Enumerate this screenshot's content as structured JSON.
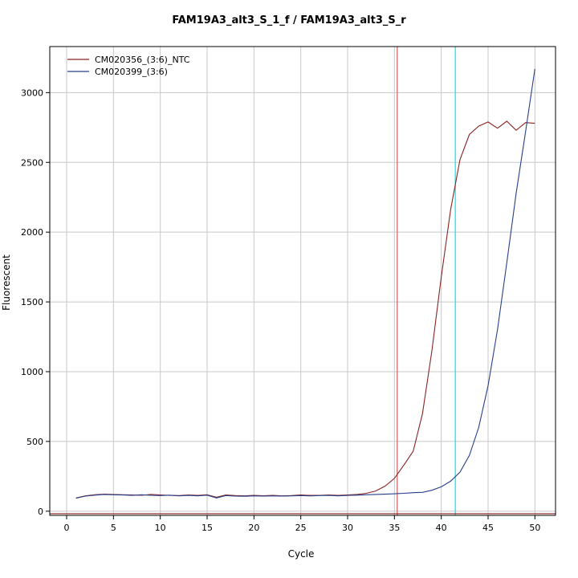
{
  "header": {
    "title": "FAM19A3_alt3_S_1_f / FAM19A3_alt3_S_r"
  },
  "chart_data": {
    "type": "line",
    "title": "FAM19A3_alt3_S_1_f / FAM19A3_alt3_S_r",
    "xlabel": "Cycle",
    "ylabel": "Fluorescent",
    "xlim": [
      -1.8,
      52.2
    ],
    "ylim": [
      -30,
      3330
    ],
    "xticks": [
      0,
      5,
      10,
      15,
      20,
      25,
      30,
      35,
      40,
      45,
      50
    ],
    "yticks": [
      0,
      500,
      1000,
      1500,
      2000,
      2500,
      3000
    ],
    "grid": true,
    "grid_color": "#c8c8c8",
    "axis_color": "#000000",
    "legend_position": "top-left",
    "x": [
      1,
      2,
      3,
      4,
      5,
      6,
      7,
      8,
      9,
      10,
      11,
      12,
      13,
      14,
      15,
      16,
      17,
      18,
      19,
      20,
      21,
      22,
      23,
      24,
      25,
      26,
      27,
      28,
      29,
      30,
      31,
      32,
      33,
      34,
      35,
      36,
      37,
      38,
      39,
      40,
      41,
      42,
      43,
      44,
      45,
      46,
      47,
      48,
      49,
      50
    ],
    "series": [
      {
        "name": "CM020356_(3:6)_NTC",
        "color": "#8b2323",
        "values": [
          95,
          110,
          118,
          122,
          120,
          118,
          116,
          114,
          120,
          116,
          113,
          112,
          116,
          113,
          118,
          100,
          116,
          112,
          110,
          113,
          111,
          113,
          110,
          112,
          116,
          113,
          114,
          116,
          113,
          116,
          120,
          128,
          145,
          180,
          235,
          330,
          430,
          700,
          1150,
          1680,
          2160,
          2520,
          2700,
          2760,
          2790,
          2745,
          2795,
          2730,
          2785,
          2780
        ]
      },
      {
        "name": "CM020399_(3:6)",
        "color": "#27408b",
        "values": [
          93,
          108,
          115,
          120,
          118,
          116,
          113,
          118,
          114,
          112,
          115,
          110,
          113,
          110,
          115,
          95,
          112,
          108,
          107,
          110,
          108,
          110,
          108,
          110,
          112,
          110,
          112,
          113,
          110,
          113,
          115,
          118,
          120,
          122,
          125,
          128,
          133,
          135,
          150,
          175,
          215,
          280,
          400,
          600,
          900,
          1300,
          1780,
          2280,
          2720,
          3170
        ]
      }
    ],
    "vlines": [
      {
        "name": "ct-line-red",
        "x": 35.3,
        "color": "#cd5c5c"
      },
      {
        "name": "ct-line-cyan",
        "x": 41.5,
        "color": "#00e5ee"
      }
    ],
    "hlines": [
      {
        "name": "baseline-threshold",
        "y": -18,
        "color": "#8b2323"
      }
    ]
  }
}
